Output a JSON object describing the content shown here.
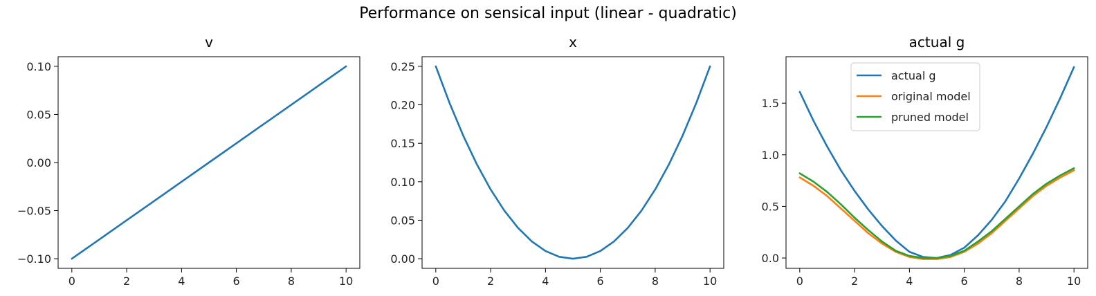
{
  "figure": {
    "suptitle": "Performance on sensical input (linear - quadratic)"
  },
  "chart_data": [
    {
      "type": "line",
      "title": "v",
      "xlabel": "",
      "ylabel": "",
      "xlim": [
        -0.5,
        10.5
      ],
      "ylim": [
        -0.11,
        0.11
      ],
      "xticks": [
        0,
        2,
        4,
        6,
        8,
        10
      ],
      "xtick_labels": [
        "0",
        "2",
        "4",
        "6",
        "8",
        "10"
      ],
      "yticks": [
        -0.1,
        -0.05,
        0.0,
        0.05,
        0.1
      ],
      "ytick_labels": [
        "−0.10",
        "−0.05",
        "0.00",
        "0.05",
        "0.10"
      ],
      "grid": false,
      "series": [
        {
          "color": "#1f77b4",
          "x": [
            0,
            1,
            2,
            3,
            4,
            5,
            6,
            7,
            8,
            9,
            10
          ],
          "y": [
            -0.1,
            -0.08,
            -0.06,
            -0.04,
            -0.02,
            0.0,
            0.02,
            0.04,
            0.06,
            0.08,
            0.1
          ]
        }
      ]
    },
    {
      "type": "line",
      "title": "x",
      "xlabel": "",
      "ylabel": "",
      "xlim": [
        -0.5,
        10.5
      ],
      "ylim": [
        -0.0125,
        0.2625
      ],
      "xticks": [
        0,
        2,
        4,
        6,
        8,
        10
      ],
      "xtick_labels": [
        "0",
        "2",
        "4",
        "6",
        "8",
        "10"
      ],
      "yticks": [
        0.0,
        0.05,
        0.1,
        0.15,
        0.2,
        0.25
      ],
      "ytick_labels": [
        "0.00",
        "0.05",
        "0.10",
        "0.15",
        "0.20",
        "0.25"
      ],
      "grid": false,
      "series": [
        {
          "color": "#1f77b4",
          "x": [
            0,
            0.5,
            1,
            1.5,
            2,
            2.5,
            3,
            3.5,
            4,
            4.5,
            5,
            5.5,
            6,
            6.5,
            7,
            7.5,
            8,
            8.5,
            9,
            9.5,
            10
          ],
          "y": [
            0.25,
            0.2025,
            0.16,
            0.1225,
            0.09,
            0.0625,
            0.04,
            0.0225,
            0.01,
            0.0025,
            0.0,
            0.0025,
            0.01,
            0.0225,
            0.04,
            0.0625,
            0.09,
            0.1225,
            0.16,
            0.2025,
            0.25
          ]
        }
      ]
    },
    {
      "type": "line",
      "title": "actual g",
      "xlabel": "",
      "ylabel": "",
      "xlim": [
        -0.5,
        10.5
      ],
      "ylim": [
        -0.1,
        1.95
      ],
      "xticks": [
        0,
        2,
        4,
        6,
        8,
        10
      ],
      "xtick_labels": [
        "0",
        "2",
        "4",
        "6",
        "8",
        "10"
      ],
      "yticks": [
        0.0,
        0.5,
        1.0,
        1.5
      ],
      "ytick_labels": [
        "0.0",
        "0.5",
        "1.0",
        "1.5"
      ],
      "grid": false,
      "legend": {
        "placement": "top-center"
      },
      "series": [
        {
          "name": "actual g",
          "color": "#1f77b4",
          "x": [
            0,
            0.5,
            1,
            1.5,
            2,
            2.5,
            3,
            3.5,
            4,
            4.5,
            5,
            5.5,
            6,
            6.5,
            7,
            7.5,
            8,
            8.5,
            9,
            9.5,
            10
          ],
          "y": [
            1.61,
            1.33,
            1.08,
            0.85,
            0.65,
            0.47,
            0.31,
            0.17,
            0.06,
            0.01,
            0.0,
            0.03,
            0.1,
            0.22,
            0.37,
            0.55,
            0.77,
            1.01,
            1.27,
            1.55,
            1.85
          ]
        },
        {
          "name": "original model",
          "color": "#ff7f0e",
          "x": [
            0,
            0.5,
            1,
            1.5,
            2,
            2.5,
            3,
            3.5,
            4,
            4.5,
            5,
            5.5,
            6,
            6.5,
            7,
            7.5,
            8,
            8.5,
            9,
            9.5,
            10
          ],
          "y": [
            0.78,
            0.7,
            0.6,
            0.48,
            0.36,
            0.24,
            0.14,
            0.06,
            0.01,
            -0.01,
            -0.01,
            0.01,
            0.06,
            0.14,
            0.24,
            0.36,
            0.48,
            0.6,
            0.7,
            0.78,
            0.85
          ]
        },
        {
          "name": "pruned model",
          "color": "#2ca02c",
          "x": [
            0,
            0.5,
            1,
            1.5,
            2,
            2.5,
            3,
            3.5,
            4,
            4.5,
            5,
            5.5,
            6,
            6.5,
            7,
            7.5,
            8,
            8.5,
            9,
            9.5,
            10
          ],
          "y": [
            0.82,
            0.74,
            0.64,
            0.52,
            0.39,
            0.27,
            0.16,
            0.07,
            0.02,
            0.0,
            0.0,
            0.02,
            0.07,
            0.16,
            0.26,
            0.38,
            0.5,
            0.62,
            0.72,
            0.8,
            0.87
          ]
        }
      ]
    }
  ]
}
